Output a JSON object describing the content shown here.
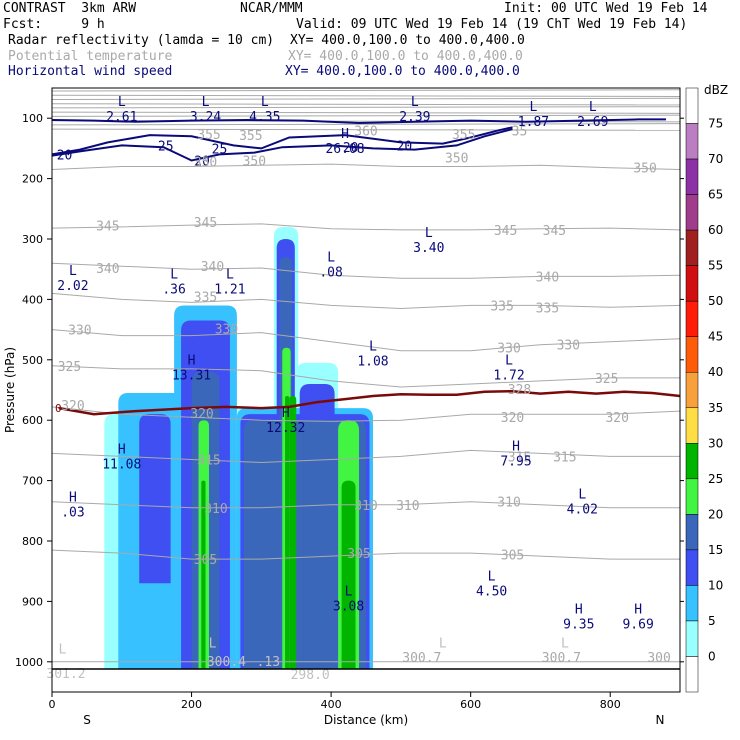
{
  "header": {
    "model": "CONTRAST  3km ARW",
    "center": "NCAR/MMM",
    "init": "Init: 00 UTC Wed 19 Feb 14",
    "fcst": "Fcst:     9 h",
    "valid": "Valid: 09 UTC Wed 19 Feb 14 (19 ChT Wed 19 Feb 14)",
    "fields": [
      {
        "name": "Radar reflectivity (lamda = 10 cm)",
        "xy": "XY= 400.0,100.0 to 400.0,400.0",
        "color": "#000000"
      },
      {
        "name": "Potential temperature",
        "xy": "XY= 400.0,100.0 to 400.0,400.0",
        "color": "#a9a9a9"
      },
      {
        "name": "Horizontal wind speed",
        "xy": "XY= 400.0,100.0 to 400.0,400.0",
        "color": "#0a0a7a"
      }
    ]
  },
  "chart_data": {
    "type": "heatmap",
    "xlabel": "Distance (km)",
    "ylabel": "Pressure (hPa)",
    "xlim": [
      0,
      900
    ],
    "ylim": [
      1050,
      50
    ],
    "x_ticks": [
      0,
      200,
      400,
      600,
      800
    ],
    "y_ticks": [
      100,
      200,
      300,
      400,
      500,
      600,
      700,
      800,
      900,
      1000
    ],
    "x_end_labels": [
      "S",
      "N"
    ],
    "colorbar": {
      "unit": "dBZ",
      "levels": [
        0,
        5,
        10,
        15,
        20,
        25,
        30,
        35,
        40,
        45,
        50,
        55,
        60,
        65,
        70,
        75
      ],
      "colors": [
        "#ffffff",
        "#99ffff",
        "#37c2ff",
        "#3f4ff2",
        "#3b67ba",
        "#42f542",
        "#00b400",
        "#ffdd44",
        "#f8a03c",
        "#ff5c0a",
        "#ff1d0a",
        "#d01010",
        "#a02020",
        "#a03c8c",
        "#8c32a5",
        "#bc7ec3"
      ]
    },
    "reflectivity_cells": [
      {
        "x0": 75,
        "x1": 140,
        "p_top": 590,
        "p_bot": 1012,
        "dbz": 5
      },
      {
        "x0": 95,
        "x1": 190,
        "p_top": 555,
        "p_bot": 1012,
        "dbz": 10
      },
      {
        "x0": 125,
        "x1": 170,
        "p_top": 590,
        "p_bot": 870,
        "dbz": 15
      },
      {
        "x0": 175,
        "x1": 265,
        "p_top": 410,
        "p_bot": 1012,
        "dbz": 10
      },
      {
        "x0": 185,
        "x1": 255,
        "p_top": 435,
        "p_bot": 1012,
        "dbz": 15
      },
      {
        "x0": 200,
        "x1": 240,
        "p_top": 520,
        "p_bot": 1012,
        "dbz": 20
      },
      {
        "x0": 210,
        "x1": 225,
        "p_top": 600,
        "p_bot": 1012,
        "dbz": 25
      },
      {
        "x0": 214,
        "x1": 220,
        "p_top": 700,
        "p_bot": 1012,
        "dbz": 30
      },
      {
        "x0": 225,
        "x1": 290,
        "p_top": 580,
        "p_bot": 1012,
        "dbz": 5
      },
      {
        "x0": 265,
        "x1": 460,
        "p_top": 580,
        "p_bot": 1012,
        "dbz": 10
      },
      {
        "x0": 270,
        "x1": 455,
        "p_top": 590,
        "p_bot": 1012,
        "dbz": 15
      },
      {
        "x0": 275,
        "x1": 450,
        "p_top": 600,
        "p_bot": 1012,
        "dbz": 20
      },
      {
        "x0": 318,
        "x1": 353,
        "p_top": 280,
        "p_bot": 1012,
        "dbz": 5
      },
      {
        "x0": 322,
        "x1": 348,
        "p_top": 300,
        "p_bot": 1012,
        "dbz": 15
      },
      {
        "x0": 326,
        "x1": 344,
        "p_top": 330,
        "p_bot": 1012,
        "dbz": 20
      },
      {
        "x0": 330,
        "x1": 342,
        "p_top": 480,
        "p_bot": 1012,
        "dbz": 25
      },
      {
        "x0": 334,
        "x1": 340,
        "p_top": 560,
        "p_bot": 1012,
        "dbz": 30
      },
      {
        "x0": 340,
        "x1": 350,
        "p_top": 560,
        "p_bot": 1012,
        "dbz": 30
      },
      {
        "x0": 350,
        "x1": 410,
        "p_top": 505,
        "p_bot": 1012,
        "dbz": 5
      },
      {
        "x0": 355,
        "x1": 405,
        "p_top": 540,
        "p_bot": 1012,
        "dbz": 15
      },
      {
        "x0": 360,
        "x1": 400,
        "p_top": 600,
        "p_bot": 1012,
        "dbz": 20
      },
      {
        "x0": 410,
        "x1": 440,
        "p_top": 600,
        "p_bot": 1012,
        "dbz": 25
      },
      {
        "x0": 415,
        "x1": 435,
        "p_top": 700,
        "p_bot": 1012,
        "dbz": 30
      }
    ],
    "wind_speed_contours": [
      {
        "level": 20,
        "points": [
          [
            0,
            103
          ],
          [
            60,
            104
          ],
          [
            120,
            106
          ],
          [
            200,
            104
          ],
          [
            280,
            103
          ],
          [
            360,
            104
          ],
          [
            440,
            108
          ],
          [
            520,
            106
          ],
          [
            600,
            104
          ],
          [
            680,
            106
          ],
          [
            760,
            104
          ],
          [
            840,
            102
          ],
          [
            880,
            102
          ]
        ]
      },
      {
        "level": 25,
        "points": [
          [
            0,
            160
          ],
          [
            40,
            152
          ],
          [
            80,
            140
          ],
          [
            140,
            128
          ],
          [
            200,
            130
          ],
          [
            260,
            145
          ],
          [
            300,
            150
          ],
          [
            340,
            132
          ],
          [
            420,
            128
          ],
          [
            500,
            140
          ],
          [
            560,
            142
          ],
          [
            600,
            132
          ],
          [
            640,
            120
          ],
          [
            660,
            115
          ]
        ]
      },
      {
        "level": 20,
        "points": [
          [
            0,
            162
          ],
          [
            40,
            155
          ],
          [
            100,
            145
          ],
          [
            160,
            148
          ],
          [
            200,
            170
          ],
          [
            240,
            160
          ],
          [
            290,
            157
          ],
          [
            330,
            148
          ],
          [
            400,
            145
          ],
          [
            460,
            150
          ],
          [
            520,
            152
          ],
          [
            580,
            145
          ],
          [
            620,
            130
          ],
          [
            660,
            118
          ]
        ]
      }
    ],
    "theta_contours": [
      {
        "level": 350,
        "p": [
          185,
          180,
          180,
          178,
          176,
          180,
          180,
          178,
          182,
          185
        ]
      },
      {
        "level": 345,
        "p": [
          282,
          280,
          277,
          275,
          283,
          285,
          285,
          283,
          282,
          285
        ]
      },
      {
        "level": 340,
        "p": [
          340,
          345,
          350,
          348,
          360,
          365,
          365,
          362,
          362,
          360
        ]
      },
      {
        "level": 335,
        "p": [
          390,
          400,
          405,
          400,
          410,
          415,
          410,
          410,
          413,
          410
        ]
      },
      {
        "level": 330,
        "p": [
          450,
          460,
          460,
          455,
          470,
          485,
          485,
          475,
          470,
          465
        ]
      },
      {
        "level": 325,
        "p": [
          510,
          515,
          515,
          518,
          535,
          545,
          540,
          535,
          530,
          530
        ]
      },
      {
        "level": 320,
        "p": [
          578,
          590,
          595,
          600,
          602,
          600,
          590,
          590,
          590,
          585
        ]
      },
      {
        "level": 315,
        "p": [
          655,
          660,
          665,
          670,
          665,
          660,
          650,
          655,
          660,
          660
        ]
      },
      {
        "level": 310,
        "p": [
          735,
          740,
          745,
          745,
          740,
          740,
          735,
          740,
          745,
          745
        ]
      },
      {
        "level": 305,
        "p": [
          815,
          820,
          830,
          830,
          825,
          820,
          820,
          825,
          830,
          830
        ]
      },
      {
        "level": 300,
        "p": [
          1000,
          1000,
          1000,
          1000,
          1000,
          1000,
          1000,
          1000,
          1000,
          1000
        ]
      }
    ],
    "theta_x": [
      0,
      100,
      200,
      300,
      400,
      500,
      600,
      700,
      800,
      900
    ],
    "theta_labels": [
      {
        "text": "355",
        "x": 225,
        "p": 126
      },
      {
        "text": "355",
        "x": 285,
        "p": 128
      },
      {
        "text": "360",
        "x": 450,
        "p": 120
      },
      {
        "text": "355",
        "x": 590,
        "p": 126
      },
      {
        "text": "35",
        "x": 670,
        "p": 120
      },
      {
        "text": "350",
        "x": 220,
        "p": 172
      },
      {
        "text": "350",
        "x": 290,
        "p": 170
      },
      {
        "text": "350",
        "x": 580,
        "p": 165
      },
      {
        "text": "350",
        "x": 850,
        "p": 182
      },
      {
        "text": "345",
        "x": 80,
        "p": 278
      },
      {
        "text": "345",
        "x": 220,
        "p": 272
      },
      {
        "text": "345",
        "x": 650,
        "p": 285
      },
      {
        "text": "345",
        "x": 720,
        "p": 285
      },
      {
        "text": "340",
        "x": 80,
        "p": 348
      },
      {
        "text": "340",
        "x": 230,
        "p": 345
      },
      {
        "text": "340",
        "x": 710,
        "p": 362
      },
      {
        "text": "335",
        "x": 220,
        "p": 395
      },
      {
        "text": "335",
        "x": 645,
        "p": 410
      },
      {
        "text": "335",
        "x": 710,
        "p": 413
      },
      {
        "text": "330",
        "x": 40,
        "p": 450
      },
      {
        "text": "330",
        "x": 250,
        "p": 448
      },
      {
        "text": "330",
        "x": 655,
        "p": 480
      },
      {
        "text": "330",
        "x": 740,
        "p": 475
      },
      {
        "text": "325",
        "x": 25,
        "p": 510
      },
      {
        "text": "325",
        "x": 795,
        "p": 530
      },
      {
        "text": "328",
        "x": 670,
        "p": 548
      },
      {
        "text": "320",
        "x": 30,
        "p": 575
      },
      {
        "text": "320",
        "x": 215,
        "p": 588
      },
      {
        "text": "320",
        "x": 660,
        "p": 595
      },
      {
        "text": "320",
        "x": 810,
        "p": 595
      },
      {
        "text": "315",
        "x": 225,
        "p": 665
      },
      {
        "text": "315",
        "x": 670,
        "p": 660
      },
      {
        "text": "315",
        "x": 735,
        "p": 660
      },
      {
        "text": "310",
        "x": 235,
        "p": 745
      },
      {
        "text": "310",
        "x": 450,
        "p": 740
      },
      {
        "text": "310",
        "x": 510,
        "p": 740
      },
      {
        "text": "310",
        "x": 655,
        "p": 735
      },
      {
        "text": "305",
        "x": 220,
        "p": 830
      },
      {
        "text": "305",
        "x": 440,
        "p": 820
      },
      {
        "text": "305",
        "x": 660,
        "p": 822
      },
      {
        "text": "300.7",
        "x": 530,
        "p": 992
      },
      {
        "text": "300.7",
        "x": 730,
        "p": 992
      },
      {
        "text": "300",
        "x": 870,
        "p": 992
      }
    ],
    "freezing_level": {
      "label": "0",
      "points": [
        [
          10,
          580
        ],
        [
          60,
          590
        ],
        [
          120,
          585
        ],
        [
          200,
          580
        ],
        [
          250,
          578
        ],
        [
          300,
          580
        ],
        [
          340,
          578
        ],
        [
          380,
          570
        ],
        [
          420,
          565
        ],
        [
          460,
          560
        ],
        [
          500,
          557
        ],
        [
          540,
          558
        ],
        [
          580,
          558
        ],
        [
          620,
          553
        ],
        [
          660,
          552
        ],
        [
          700,
          556
        ],
        [
          740,
          553
        ],
        [
          780,
          556
        ],
        [
          820,
          553
        ],
        [
          860,
          555
        ],
        [
          900,
          560
        ]
      ]
    },
    "extrema": [
      {
        "type": "L",
        "value": "2.61",
        "x": 100,
        "p": 80
      },
      {
        "type": "L",
        "value": "3.24",
        "x": 220,
        "p": 80
      },
      {
        "type": "L",
        "value": "4.35",
        "x": 305,
        "p": 80
      },
      {
        "type": "L",
        "value": "2.39",
        "x": 520,
        "p": 80
      },
      {
        "type": "L",
        "value": "1.87",
        "x": 690,
        "p": 88
      },
      {
        "type": "L",
        "value": "2.69",
        "x": 775,
        "p": 88
      },
      {
        "type": "H",
        "value": "26.08",
        "x": 420,
        "p": 133
      },
      {
        "type": "L",
        "value": ".08",
        "x": 400,
        "p": 337
      },
      {
        "type": "L",
        "value": "3.40",
        "x": 540,
        "p": 297
      },
      {
        "type": "L",
        "value": "2.02",
        "x": 30,
        "p": 360
      },
      {
        "type": "L",
        "value": ".36",
        "x": 175,
        "p": 365
      },
      {
        "type": "L",
        "value": "1.21",
        "x": 255,
        "p": 365
      },
      {
        "type": "L",
        "value": "1.08",
        "x": 460,
        "p": 485
      },
      {
        "type": "L",
        "value": "1.72",
        "x": 655,
        "p": 508
      },
      {
        "type": "H",
        "value": "13.31",
        "x": 200,
        "p": 508
      },
      {
        "type": "H",
        "value": "12.32",
        "x": 335,
        "p": 595
      },
      {
        "type": "H",
        "value": "11.08",
        "x": 100,
        "p": 655
      },
      {
        "type": "H",
        "value": "7.95",
        "x": 665,
        "p": 650
      },
      {
        "type": "H",
        "value": ".03",
        "x": 30,
        "p": 735
      },
      {
        "type": "L",
        "value": "4.02",
        "x": 760,
        "p": 730
      },
      {
        "type": "L",
        "value": "4.50",
        "x": 630,
        "p": 865
      },
      {
        "type": "L",
        "value": "3.08",
        "x": 425,
        "p": 890
      },
      {
        "type": "H",
        "value": "9.35",
        "x": 755,
        "p": 920
      },
      {
        "type": "H",
        "value": "9.69",
        "x": 840,
        "p": 920
      }
    ],
    "surface_labels": [
      {
        "text": "L",
        "x": 15,
        "p": 980
      },
      {
        "text": "301.2",
        "x": 20,
        "p": 1020
      },
      {
        "text": "L",
        "x": 230,
        "p": 970
      },
      {
        "text": "300.4",
        "x": 250,
        "p": 1000
      },
      {
        "text": ".13",
        "x": 310,
        "p": 1000
      },
      {
        "text": "298.0",
        "x": 370,
        "p": 1022
      },
      {
        "text": "L",
        "x": 560,
        "p": 970
      },
      {
        "text": "L",
        "x": 735,
        "p": 970
      }
    ],
    "surface_pressure": 1012
  }
}
